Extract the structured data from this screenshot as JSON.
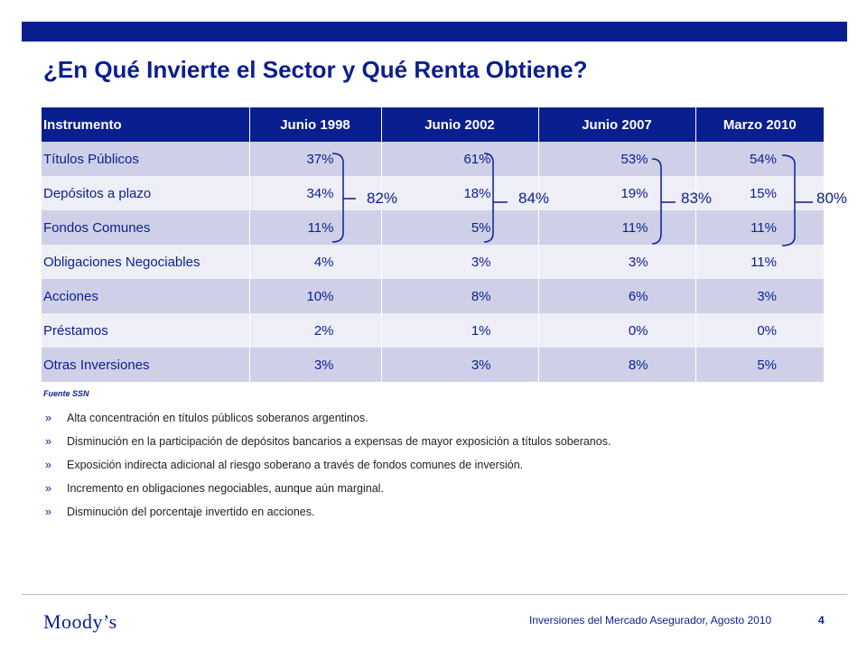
{
  "slide": {
    "title": "¿En Qué Invierte el Sector y Qué Renta Obtiene?",
    "source": "Fuente SSN",
    "colors": {
      "brand": "#0a1f8f",
      "row_odd": "#cfd0e8",
      "row_even": "#eeeef6"
    }
  },
  "table": {
    "headers": [
      "Instrumento",
      "Junio 1998",
      "Junio 2002",
      "Junio 2007",
      "Marzo 2010"
    ],
    "rows": [
      [
        "Títulos Públicos",
        "37%",
        "61%",
        "53%",
        "54%"
      ],
      [
        "Depósitos a plazo",
        "34%",
        "18%",
        "19%",
        "15%"
      ],
      [
        "Fondos Comunes",
        "11%",
        "5%",
        "11%",
        "11%"
      ],
      [
        "Obligaciones Negociables",
        "4%",
        "3%",
        "3%",
        "11%"
      ],
      [
        "Acciones",
        "10%",
        "8%",
        "6%",
        "3%"
      ],
      [
        "Préstamos",
        "2%",
        "1%",
        "0%",
        "0%"
      ],
      [
        "Otras Inversiones",
        "3%",
        "3%",
        "8%",
        "5%"
      ]
    ]
  },
  "groups": [
    "82%",
    "84%",
    "83%",
    "80%"
  ],
  "bullets": {
    "marker": "»",
    "items": [
      "Alta concentración en títulos públicos soberanos argentinos.",
      "Disminución en la participación de depósitos bancarios a expensas de mayor exposición a títulos soberanos.",
      "Exposición indirecta adicional al riesgo soberano a través de fondos comunes de inversión.",
      "Incremento en obligaciones negociables, aunque aún marginal.",
      "Disminución del porcentaje invertido en acciones."
    ]
  },
  "footer": {
    "logo": "Moody’s",
    "text": "Inversiones del Mercado Asegurador, Agosto 2010",
    "page": "4"
  }
}
